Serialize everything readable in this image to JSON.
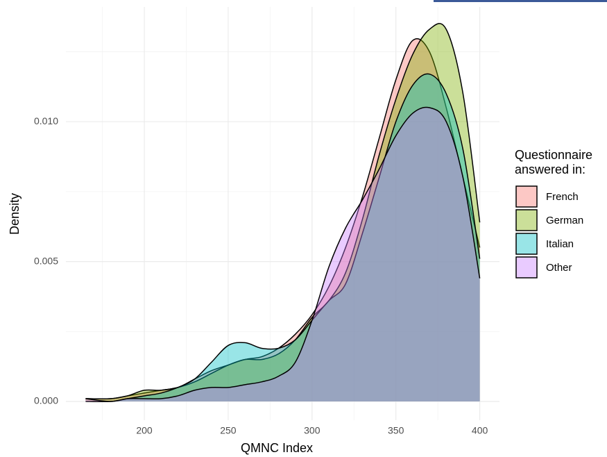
{
  "chart_data": {
    "type": "density",
    "x_label": "QMNC Index",
    "y_label": "Density",
    "legend_title": "Questionnaire answered in:",
    "x": [
      165,
      180,
      190,
      200,
      210,
      220,
      230,
      240,
      250,
      260,
      270,
      280,
      290,
      300,
      310,
      320,
      330,
      340,
      350,
      360,
      370,
      380,
      390,
      400
    ],
    "series": [
      {
        "name": "French",
        "color": "#F8766D",
        "values": [
          0.0001,
          0.0001,
          0.0002,
          0.0003,
          0.0004,
          0.0005,
          0.0008,
          0.0011,
          0.0013,
          0.0015,
          0.0016,
          0.0019,
          0.0024,
          0.0031,
          0.0041,
          0.0055,
          0.0073,
          0.0094,
          0.0115,
          0.0129,
          0.0125,
          0.0105,
          0.008,
          0.0055
        ]
      },
      {
        "name": "German",
        "color": "#7CAE00",
        "values": [
          0.0001,
          0.0001,
          0.0002,
          0.0004,
          0.0004,
          0.0005,
          0.0007,
          0.001,
          0.0013,
          0.0015,
          0.0015,
          0.0017,
          0.0022,
          0.003,
          0.0036,
          0.0046,
          0.0065,
          0.0088,
          0.0108,
          0.0124,
          0.0133,
          0.0133,
          0.011,
          0.0064
        ]
      },
      {
        "name": "Italian",
        "color": "#00BFC4",
        "values": [
          0.0,
          0.0,
          0.0001,
          0.0002,
          0.0003,
          0.0005,
          0.0008,
          0.0014,
          0.002,
          0.0021,
          0.0019,
          0.0019,
          0.0022,
          0.0029,
          0.0036,
          0.0042,
          0.006,
          0.008,
          0.01,
          0.0113,
          0.0117,
          0.011,
          0.009,
          0.0051
        ]
      },
      {
        "name": "Other",
        "color": "#C77CFF",
        "values": [
          0.0001,
          0.0,
          0.0001,
          0.0001,
          0.0001,
          0.0002,
          0.0004,
          0.0005,
          0.0005,
          0.0006,
          0.0007,
          0.0009,
          0.0014,
          0.0029,
          0.0048,
          0.0062,
          0.0072,
          0.0083,
          0.0095,
          0.0103,
          0.0105,
          0.01,
          0.008,
          0.0044
        ]
      }
    ],
    "xlim": [
      153.25,
      411.75
    ],
    "ylim": [
      -0.00067,
      0.0141
    ],
    "xticks": [
      200,
      250,
      300,
      350,
      400
    ],
    "x_minor_ticks": [
      175,
      225,
      275,
      325,
      375
    ],
    "yticks": [
      {
        "value": 0,
        "label": "0.000"
      },
      {
        "value": 0.005,
        "label": "0.005"
      },
      {
        "value": 0.01,
        "label": "0.010"
      }
    ],
    "y_minor_ticks": [
      0.0025,
      0.0075,
      0.0125
    ],
    "grid": true,
    "fill_opacity": 0.4,
    "legend_position": "right"
  }
}
